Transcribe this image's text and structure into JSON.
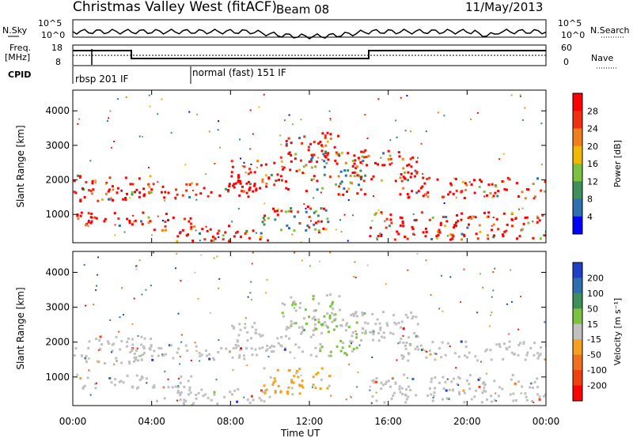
{
  "header": {
    "title": "Christmas Valley West (fitACF)",
    "beam": "Beam 08",
    "date": "11/May/2013"
  },
  "status_panels": {
    "nsky_label": "N.Sky",
    "nsearch_label": "N.Search",
    "noise_ticks": [
      "10^5",
      "10^0"
    ],
    "freq_label_line1": "Freq.",
    "freq_label_line2": "[MHz]",
    "freq_ticks": [
      "18",
      "8"
    ],
    "nave_label": "Nave",
    "nave_ticks": [
      "60",
      "0"
    ],
    "cpid_label": "CPID",
    "cpid_entries": [
      "rbsp 201 IF",
      "normal (fast) 151 IF"
    ]
  },
  "colors": {
    "power_scale": [
      "#0000ff",
      "#2e6fb0",
      "#3f8f5a",
      "#7cc242",
      "#f2b800",
      "#f07f1e",
      "#f03010",
      "#ff0000"
    ],
    "velocity_scale": [
      "#1f3fc8",
      "#2f6fb0",
      "#3f8f5a",
      "#7cc242",
      "#c0c0c0",
      "#f5a020",
      "#f07020",
      "#f04010",
      "#ff0000"
    ],
    "ground_scatter": "#c0c0c0"
  },
  "chart_data": [
    {
      "type": "heatmap",
      "name": "power",
      "ylabel": "Slant Range [km]",
      "xlabel": "Time UT",
      "x_ticks": [
        "00:00",
        "04:00",
        "08:00",
        "12:00",
        "16:00",
        "20:00",
        "00:00"
      ],
      "y_ticks": [
        1000,
        2000,
        3000,
        4000
      ],
      "ylim": [
        180,
        4600
      ],
      "xlim_hours": [
        0,
        24
      ],
      "colorbar_label": "Power [dB]",
      "colorbar_ticks": [
        4,
        8,
        12,
        16,
        20,
        24,
        28
      ]
    },
    {
      "type": "heatmap",
      "name": "velocity",
      "ylabel": "Slant Range [km]",
      "xlabel": "Time UT",
      "x_ticks": [
        "00:00",
        "04:00",
        "08:00",
        "12:00",
        "16:00",
        "20:00",
        "00:00"
      ],
      "y_ticks": [
        1000,
        2000,
        3000,
        4000
      ],
      "ylim": [
        180,
        4600
      ],
      "xlim_hours": [
        0,
        24
      ],
      "colorbar_label": "Velocity [m s⁻¹]",
      "colorbar_ticks": [
        200,
        100,
        50,
        15,
        -15,
        -50,
        -100,
        -200
      ]
    }
  ],
  "scatter_bands": [
    {
      "t0": 0.0,
      "t1": 4.0,
      "r0": 1400,
      "r1": 2200
    },
    {
      "t0": 3.0,
      "t1": 9.5,
      "r0": 1500,
      "r1": 1950
    },
    {
      "t0": 8.0,
      "t1": 11.8,
      "r0": 1700,
      "r1": 2600
    },
    {
      "t0": 10.5,
      "t1": 13.5,
      "r0": 2500,
      "r1": 3400
    },
    {
      "t0": 12.0,
      "t1": 14.8,
      "r0": 1600,
      "r1": 2900
    },
    {
      "t0": 14.0,
      "t1": 17.5,
      "r0": 2000,
      "r1": 2900
    },
    {
      "t0": 16.5,
      "t1": 24.0,
      "r0": 1500,
      "r1": 2100
    },
    {
      "t0": 0.0,
      "t1": 6.0,
      "r0": 700,
      "r1": 1100
    },
    {
      "t0": 9.5,
      "t1": 13.0,
      "r0": 500,
      "r1": 1300
    },
    {
      "t0": 15.0,
      "t1": 24.0,
      "r0": 300,
      "r1": 1100
    },
    {
      "t0": 4.0,
      "t1": 10.0,
      "r0": 250,
      "r1": 700
    }
  ]
}
